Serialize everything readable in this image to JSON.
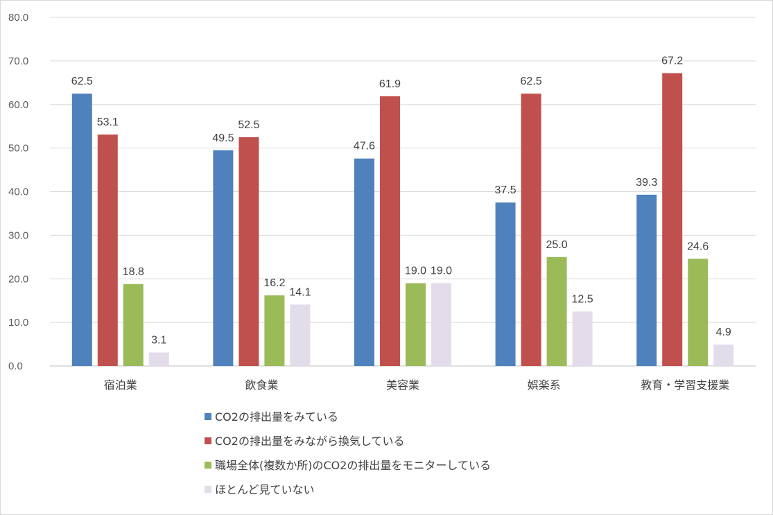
{
  "chart_data": {
    "type": "bar",
    "categories": [
      "宿泊業",
      "飲食業",
      "美容業",
      "娯楽系",
      "教育・学習支援業"
    ],
    "series": [
      {
        "name": "CO2の排出量をみている",
        "color": "#4f81bd",
        "values": [
          62.5,
          49.5,
          47.6,
          37.5,
          39.3
        ]
      },
      {
        "name": "CO2の排出量をみながら換気している",
        "color": "#c0504d",
        "values": [
          53.1,
          52.5,
          61.9,
          62.5,
          67.2
        ]
      },
      {
        "name": "職場全体(複数か所)のCO2の排出量をモニターしている",
        "color": "#9bbb59",
        "values": [
          18.8,
          16.2,
          19.0,
          25.0,
          24.6
        ]
      },
      {
        "name": "ほとんど見ていない",
        "color": "#e3dcea",
        "values": [
          3.1,
          14.1,
          19.0,
          12.5,
          4.9
        ]
      }
    ],
    "ylim": [
      0,
      80
    ],
    "yticks": [
      "0.0",
      "10.0",
      "20.0",
      "30.0",
      "40.0",
      "50.0",
      "60.0",
      "70.0",
      "80.0"
    ],
    "grid": true,
    "legend_position": "bottom",
    "value_format": "one-decimal"
  }
}
